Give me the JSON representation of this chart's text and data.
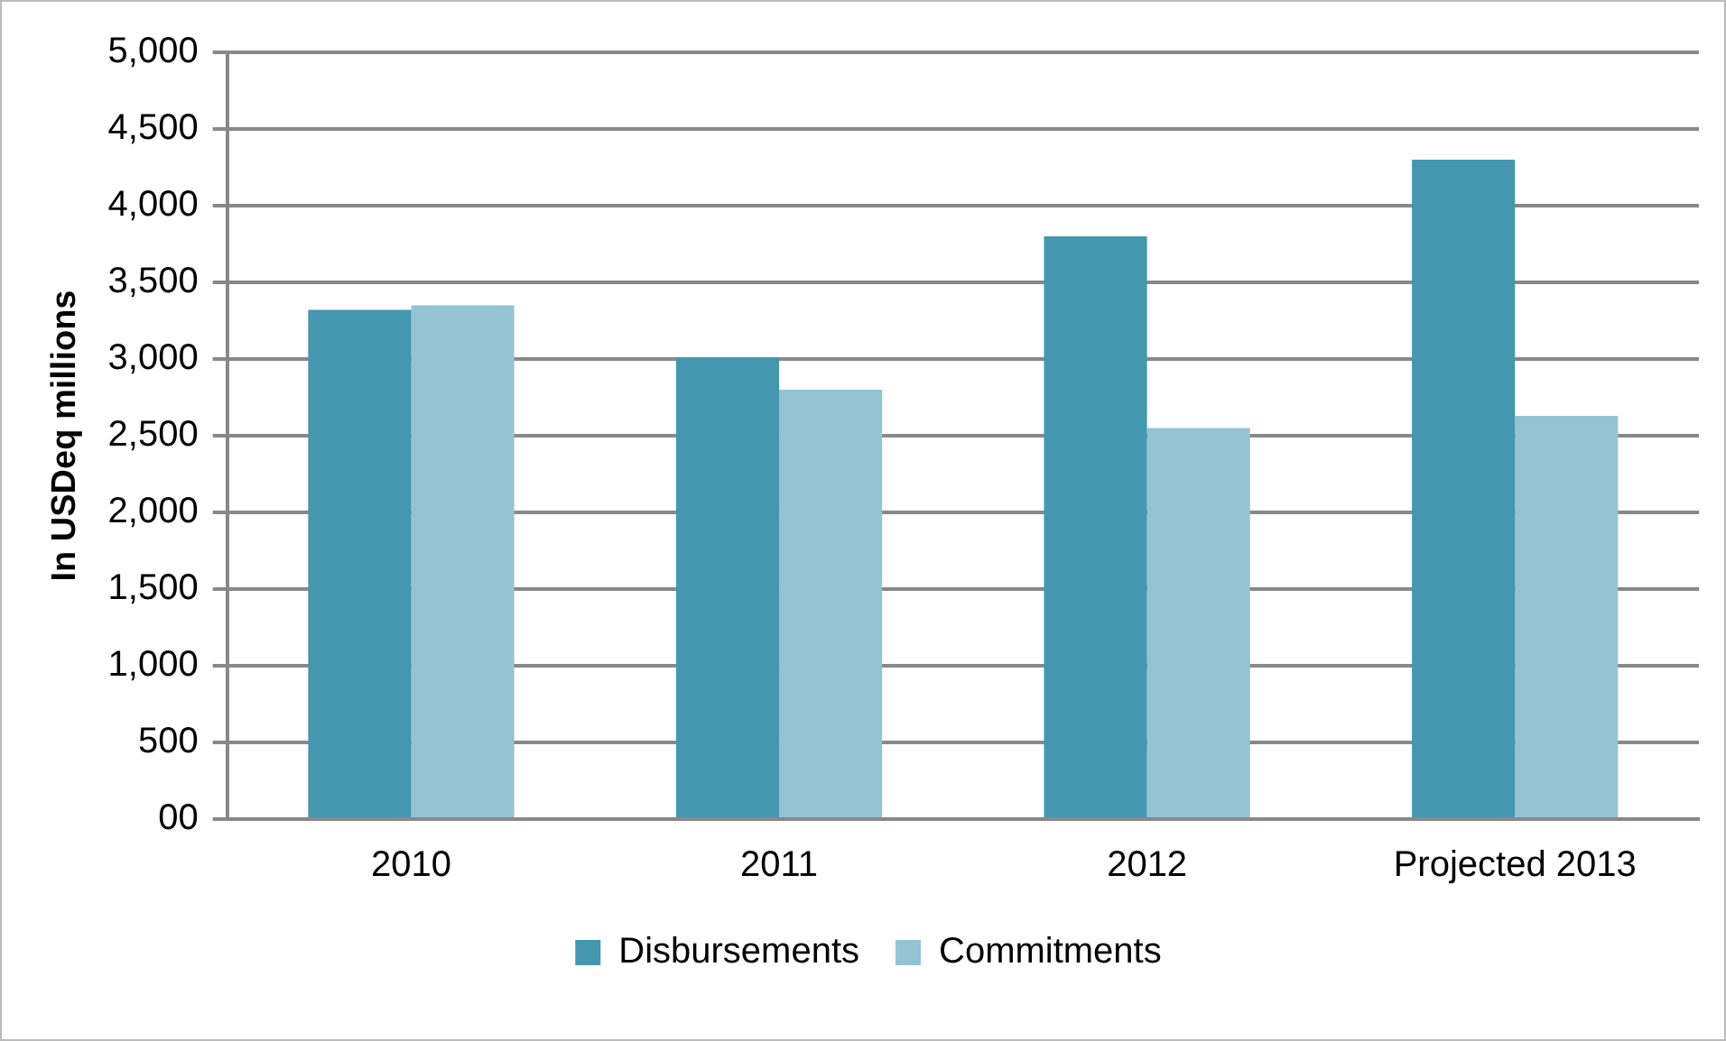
{
  "chart_data": {
    "type": "bar",
    "ylabel": "In USDeq millions",
    "categories": [
      "2010",
      "2011",
      "2012",
      "Projected 2013"
    ],
    "series": [
      {
        "name": "Disbursements",
        "color": "#4398b0",
        "values": [
          3320,
          3010,
          3800,
          4300
        ]
      },
      {
        "name": "Commitments",
        "color": "#94c3d4",
        "values": [
          3350,
          2800,
          2550,
          2630
        ]
      }
    ],
    "ylim": [
      0,
      5000
    ],
    "yticks": [
      {
        "value": 0,
        "label": "00"
      },
      500,
      {
        "value": 1000,
        "label": "1,000"
      },
      {
        "value": 1500,
        "label": "1,500"
      },
      {
        "value": 2000,
        "label": "2,000"
      },
      {
        "value": 2500,
        "label": "2,500"
      },
      {
        "value": 3000,
        "label": "3,000"
      },
      {
        "value": 3500,
        "label": "3,500"
      },
      {
        "value": 4000,
        "label": "4,000"
      },
      {
        "value": 4500,
        "label": "4,500"
      },
      {
        "value": 5000,
        "label": "5,000"
      }
    ],
    "grid": "y",
    "legend": "bottom"
  }
}
